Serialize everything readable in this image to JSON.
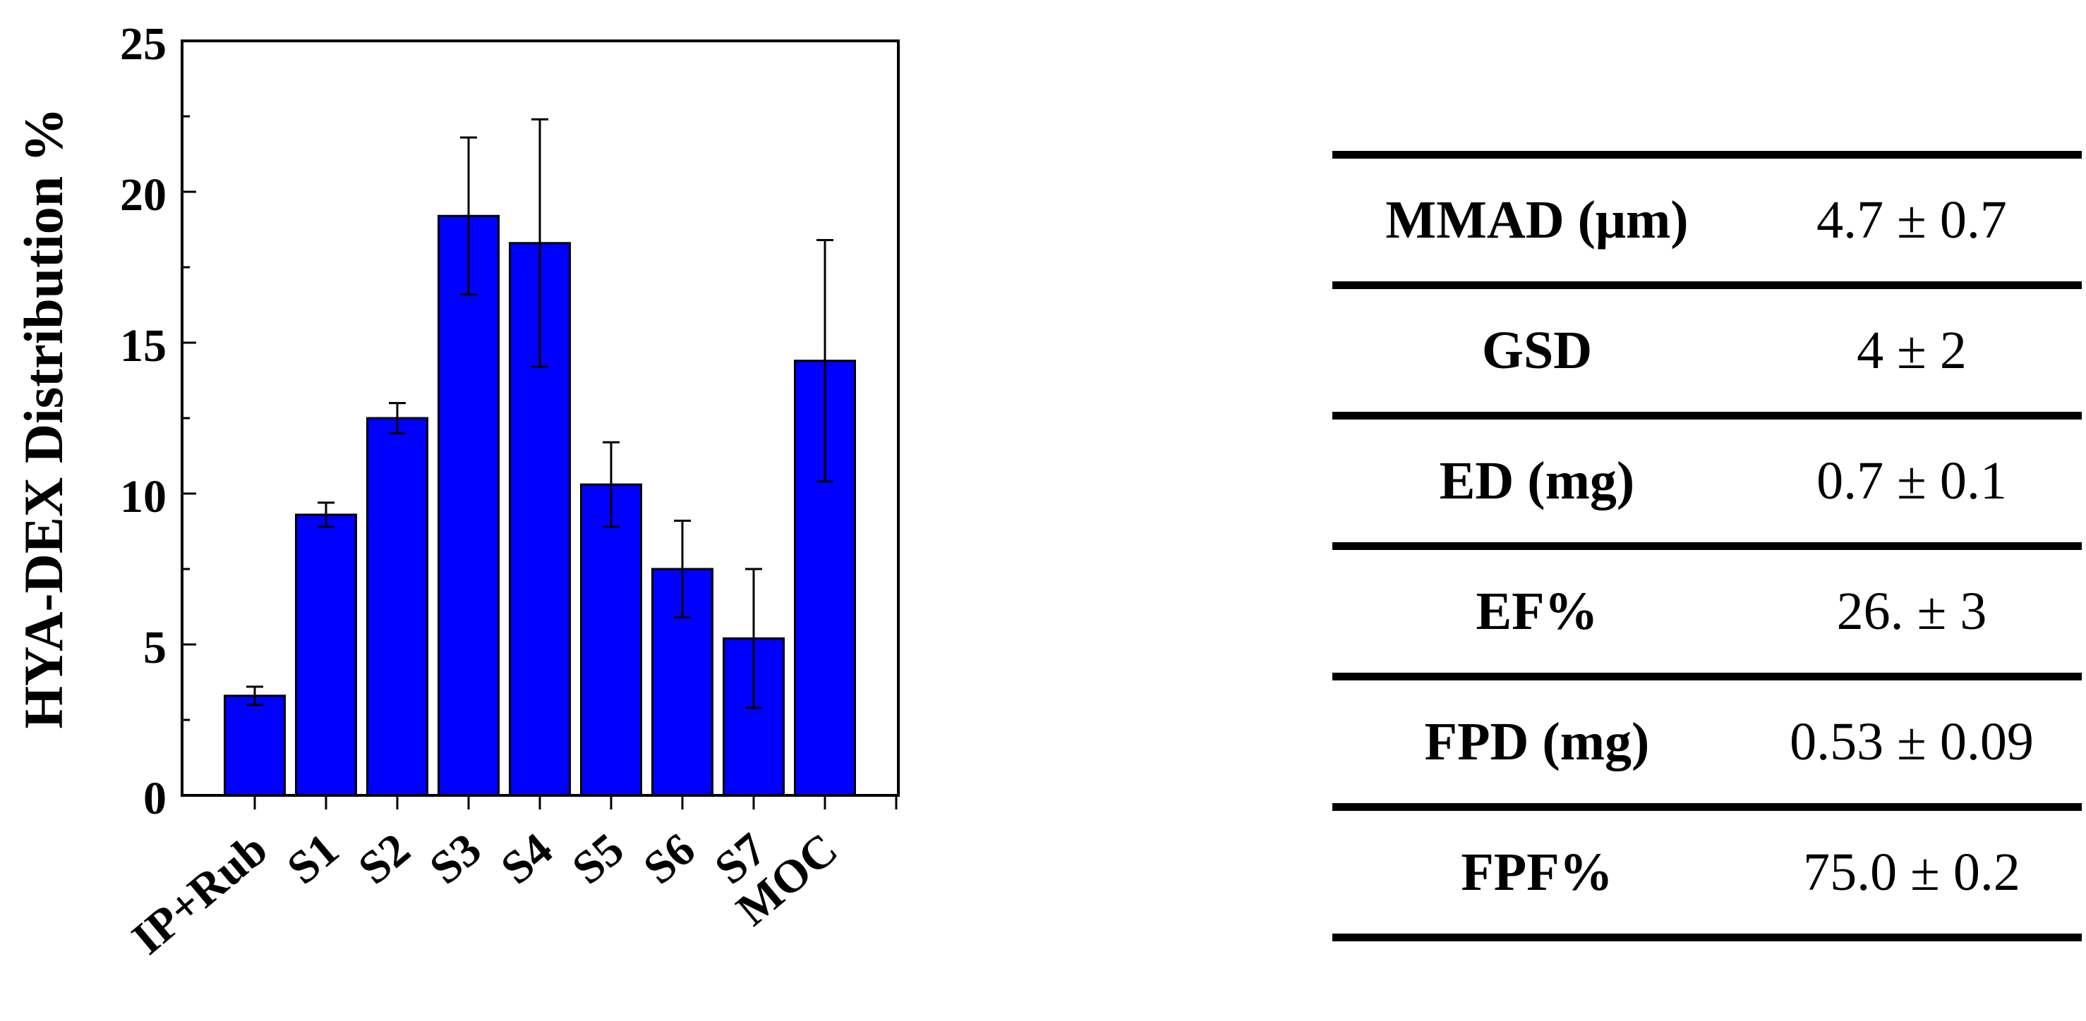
{
  "chart_data": {
    "type": "bar",
    "categories": [
      "IP+Rub",
      "S1",
      "S2",
      "S3",
      "S4",
      "S5",
      "S6",
      "S7",
      "MOC"
    ],
    "values": [
      3.3,
      9.3,
      12.5,
      19.2,
      18.3,
      10.3,
      7.5,
      5.2,
      14.4
    ],
    "errors": [
      0.3,
      0.4,
      0.5,
      2.6,
      4.1,
      1.4,
      1.6,
      2.3,
      4.0
    ],
    "title": "",
    "xlabel": "",
    "ylabel": "HYA-DEX Distribution %",
    "ylim": [
      0,
      25
    ],
    "yticks": [
      "0",
      "5",
      "10",
      "15",
      "20",
      "25"
    ],
    "bar_color": "#0000ff",
    "grid": false,
    "legend": "none"
  },
  "table": {
    "rows": [
      {
        "param": "MMAD (μm)",
        "value": "4.7 ± 0.7"
      },
      {
        "param": "GSD",
        "value": "4 ± 2"
      },
      {
        "param": "ED (mg)",
        "value": "0.7 ± 0.1"
      },
      {
        "param": "EF%",
        "value": "26. ± 3"
      },
      {
        "param": "FPD (mg)",
        "value": "0.53 ± 0.09"
      },
      {
        "param": "FPF%",
        "value": "75.0 ± 0.2"
      }
    ]
  }
}
